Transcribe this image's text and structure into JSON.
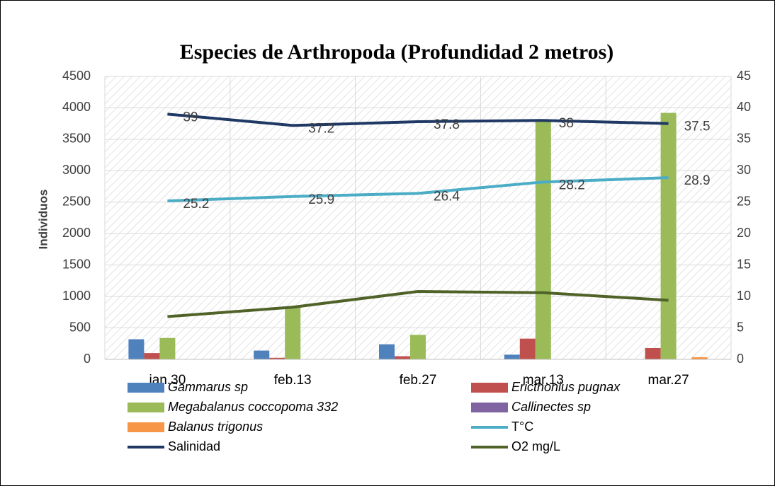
{
  "chart_data": {
    "type": "bar",
    "title": "Especies de Arthropoda (Profundidad 2 metros)",
    "y_label": "Individuos",
    "categories": [
      "jan.30",
      "feb.13",
      "feb.27",
      "mar.13",
      "mar.27"
    ],
    "series": [
      {
        "name": "Gammarus sp",
        "type": "bar",
        "color": "#4f81bd",
        "values": [
          320,
          140,
          240,
          75,
          0
        ]
      },
      {
        "name": "Ericthonius pugnax",
        "type": "bar",
        "color": "#c0504d",
        "values": [
          100,
          25,
          50,
          330,
          180
        ]
      },
      {
        "name": "Megabalanus coccopoma 332",
        "type": "bar",
        "color": "#9bbb59",
        "values": [
          340,
          830,
          390,
          3810,
          3920
        ]
      },
      {
        "name": "Callinectes sp",
        "type": "bar",
        "color": "#8064a2",
        "values": [
          0,
          0,
          0,
          5,
          0
        ]
      },
      {
        "name": "Balanus trigonus",
        "type": "bar",
        "color": "#f79646",
        "values": [
          0,
          0,
          0,
          0,
          35
        ]
      },
      {
        "name": "T°C",
        "type": "line",
        "axis": "y2",
        "color": "#4bacc6",
        "values": [
          25.2,
          25.9,
          26.4,
          28.2,
          28.9
        ],
        "labels": true
      },
      {
        "name": "Salinidad",
        "type": "line",
        "axis": "y2",
        "color": "#1f3864",
        "values": [
          39,
          37.2,
          37.8,
          38,
          37.5
        ],
        "labels": true
      },
      {
        "name": "O2 mg/L",
        "type": "line",
        "axis": "y2",
        "color": "#4f6228",
        "values": [
          6.8,
          8.3,
          10.8,
          10.6,
          9.4
        ],
        "labels": false
      }
    ],
    "ylim": [
      0,
      4500
    ],
    "yticks": [
      0,
      500,
      1000,
      1500,
      2000,
      2500,
      3000,
      3500,
      4000,
      4500
    ],
    "y2lim": [
      0,
      45
    ],
    "y2ticks": [
      0,
      5,
      10,
      15,
      20,
      25,
      30,
      35,
      40,
      45
    ],
    "grid": true
  }
}
